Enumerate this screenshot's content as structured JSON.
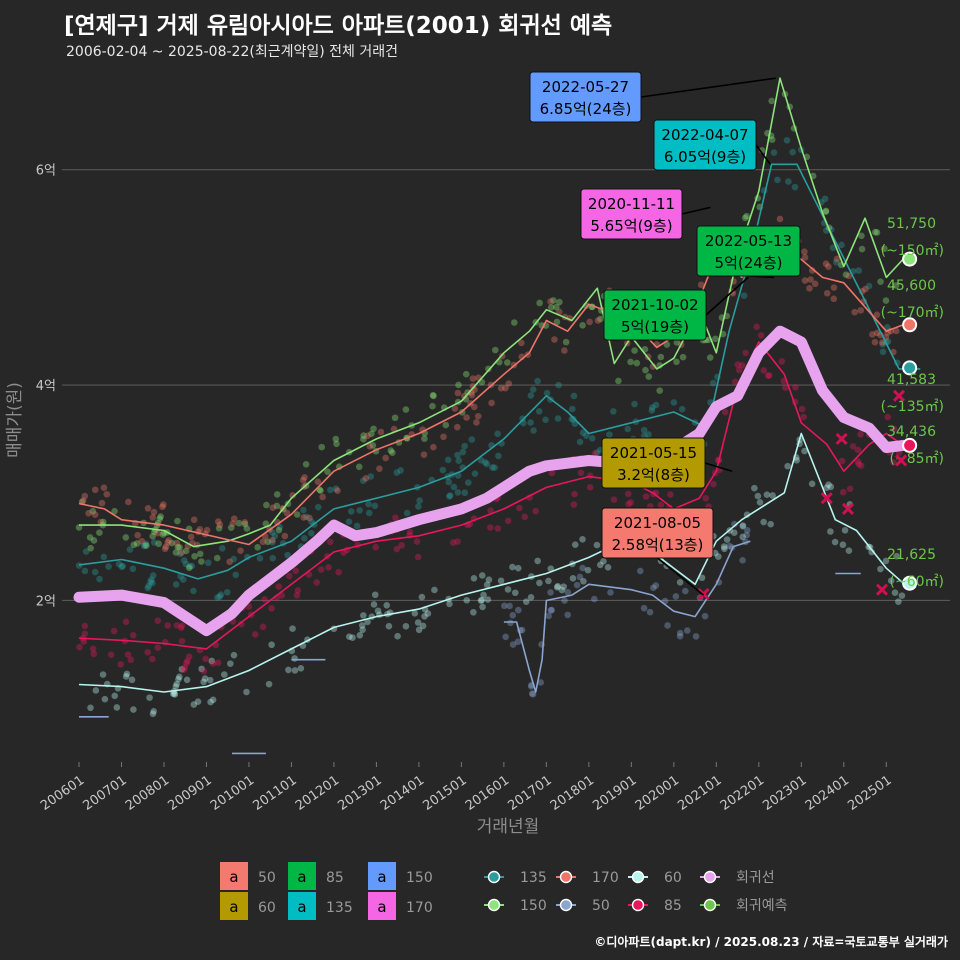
{
  "header": {
    "title": "[연제구] 거제 유림아시아드 아파트(2001) 회귀선 예측",
    "subtitle": "2006-02-04 ~ 2025-08-22(최근계약일) 전체 거래건"
  },
  "footer": {
    "credit": "©디아파트(dapt.kr) / 2025.08.23 / 자료=국토교통부 실거래가"
  },
  "colors": {
    "background": "#272727",
    "s50": "#f4796f",
    "s60": "#b39a00",
    "s85": "#00b745",
    "s135": "#00bdc4",
    "s150": "#629afe",
    "s170": "#f466e3",
    "line135": "#2a9d9f",
    "line150": "#8ce47a",
    "line170": "#ef7568",
    "line50": "#8aa5cf",
    "line60": "#b7f4ee",
    "line85": "#e8175d",
    "regression": "#e8a3ee",
    "forecast": "#6dc64a"
  },
  "chart_data": {
    "type": "scatter",
    "xlabel": "거래년월",
    "ylabel": "매매가(원)",
    "ylim": [
      0.5,
      7.0
    ],
    "y_unit": "억",
    "y_ticks": [
      {
        "v": 2,
        "label": "2억"
      },
      {
        "v": 4,
        "label": "4억"
      },
      {
        "v": 6,
        "label": "6억"
      }
    ],
    "x_ticks": [
      "200601",
      "200701",
      "200801",
      "200901",
      "201001",
      "201101",
      "201201",
      "201301",
      "201401",
      "201501",
      "201601",
      "201701",
      "201801",
      "201901",
      "202001",
      "202101",
      "202201",
      "202301",
      "202401",
      "202501"
    ],
    "xlim": [
      2005.6,
      2026.5
    ],
    "series": [
      {
        "name": "135",
        "points": [
          [
            2006.0,
            2.33
          ],
          [
            2007.0,
            2.38
          ],
          [
            2008.0,
            2.3
          ],
          [
            2008.8,
            2.2
          ],
          [
            2009.5,
            2.28
          ],
          [
            2010.0,
            2.4
          ],
          [
            2011.0,
            2.55
          ],
          [
            2012.0,
            2.85
          ],
          [
            2013.0,
            2.95
          ],
          [
            2014.0,
            3.05
          ],
          [
            2015.0,
            3.2
          ],
          [
            2016.0,
            3.5
          ],
          [
            2017.0,
            3.9
          ],
          [
            2017.5,
            3.75
          ],
          [
            2018.0,
            3.55
          ],
          [
            2019.0,
            3.65
          ],
          [
            2020.0,
            3.75
          ],
          [
            2020.8,
            3.6
          ],
          [
            2021.3,
            4.5
          ],
          [
            2021.8,
            5.2
          ],
          [
            2022.3,
            6.05
          ],
          [
            2022.9,
            6.05
          ],
          [
            2025.3,
            4.15
          ],
          [
            2025.8,
            4.15
          ]
        ]
      },
      {
        "name": "150",
        "points": [
          [
            2006.0,
            2.7
          ],
          [
            2007.0,
            2.7
          ],
          [
            2008.0,
            2.65
          ],
          [
            2008.7,
            2.5
          ],
          [
            2009.5,
            2.55
          ],
          [
            2010.0,
            2.62
          ],
          [
            2010.5,
            2.7
          ],
          [
            2011.0,
            2.95
          ],
          [
            2012.0,
            3.3
          ],
          [
            2013.0,
            3.5
          ],
          [
            2014.0,
            3.65
          ],
          [
            2015.0,
            3.85
          ],
          [
            2016.0,
            4.3
          ],
          [
            2016.6,
            4.5
          ],
          [
            2017.0,
            4.7
          ],
          [
            2017.6,
            4.6
          ],
          [
            2018.2,
            4.9
          ],
          [
            2018.6,
            4.2
          ],
          [
            2019.0,
            4.45
          ],
          [
            2019.6,
            4.15
          ],
          [
            2020.0,
            4.25
          ],
          [
            2020.6,
            4.7
          ],
          [
            2021.0,
            4.3
          ],
          [
            2021.5,
            5.2
          ],
          [
            2022.0,
            5.8
          ],
          [
            2022.5,
            6.85
          ],
          [
            2023.0,
            6.2
          ],
          [
            2023.5,
            5.6
          ],
          [
            2024.0,
            5.1
          ],
          [
            2024.5,
            5.55
          ],
          [
            2025.0,
            5.0
          ],
          [
            2025.4,
            5.17
          ]
        ]
      },
      {
        "name": "170",
        "points": [
          [
            2006.0,
            2.9
          ],
          [
            2006.6,
            2.85
          ],
          [
            2007.0,
            2.75
          ],
          [
            2008.0,
            2.7
          ],
          [
            2010.0,
            2.52
          ],
          [
            2011.0,
            2.8
          ],
          [
            2012.0,
            3.2
          ],
          [
            2013.0,
            3.4
          ],
          [
            2014.0,
            3.55
          ],
          [
            2015.0,
            3.75
          ],
          [
            2016.0,
            4.1
          ],
          [
            2016.6,
            4.3
          ],
          [
            2017.0,
            4.6
          ],
          [
            2017.5,
            4.5
          ],
          [
            2018.0,
            4.75
          ],
          [
            2019.0,
            4.6
          ],
          [
            2019.6,
            4.35
          ],
          [
            2020.0,
            4.45
          ],
          [
            2020.6,
            4.8
          ],
          [
            2021.0,
            5.2
          ],
          [
            2021.6,
            5.0
          ],
          [
            2022.3,
            5.45
          ],
          [
            2022.9,
            5.2
          ],
          [
            2023.5,
            5.0
          ],
          [
            2024.0,
            4.95
          ],
          [
            2025.0,
            4.5
          ],
          [
            2025.4,
            4.56
          ]
        ]
      },
      {
        "name": "50",
        "points": [
          [
            2006.0,
            0.92
          ],
          [
            2006.7,
            0.92
          ]
        ]
      },
      {
        "name": "50",
        "points": [
          [
            2009.6,
            0.58
          ],
          [
            2010.4,
            0.58
          ]
        ]
      },
      {
        "name": "50",
        "points": [
          [
            2011.0,
            1.45
          ],
          [
            2011.8,
            1.45
          ]
        ]
      },
      {
        "name": "50",
        "points": [
          [
            2016.0,
            1.8
          ],
          [
            2016.3,
            1.8
          ],
          [
            2016.6,
            1.35
          ],
          [
            2016.75,
            1.15
          ],
          [
            2016.9,
            1.45
          ],
          [
            2017.0,
            2.0
          ],
          [
            2017.6,
            2.05
          ],
          [
            2018.0,
            2.15
          ],
          [
            2019.0,
            2.1
          ],
          [
            2019.5,
            2.05
          ],
          [
            2020.0,
            1.9
          ],
          [
            2020.5,
            1.85
          ],
          [
            2021.0,
            2.15
          ],
          [
            2021.4,
            2.5
          ],
          [
            2021.8,
            2.55
          ]
        ]
      },
      {
        "name": "50",
        "points": [
          [
            2023.8,
            2.25
          ],
          [
            2024.4,
            2.25
          ]
        ]
      },
      {
        "name": "60",
        "points": [
          [
            2006.0,
            1.22
          ],
          [
            2007.0,
            1.2
          ],
          [
            2008.0,
            1.15
          ],
          [
            2009.0,
            1.2
          ],
          [
            2010.0,
            1.35
          ],
          [
            2011.0,
            1.55
          ],
          [
            2012.0,
            1.75
          ],
          [
            2013.0,
            1.85
          ],
          [
            2014.0,
            1.92
          ],
          [
            2015.0,
            2.05
          ],
          [
            2016.0,
            2.15
          ],
          [
            2017.0,
            2.25
          ],
          [
            2018.0,
            2.4
          ],
          [
            2018.8,
            2.55
          ],
          [
            2019.5,
            2.45
          ],
          [
            2020.0,
            2.3
          ],
          [
            2020.5,
            2.15
          ],
          [
            2021.0,
            2.55
          ],
          [
            2021.6,
            2.75
          ],
          [
            2022.0,
            2.85
          ],
          [
            2022.6,
            3.0
          ],
          [
            2023.0,
            3.55
          ],
          [
            2023.8,
            2.75
          ],
          [
            2024.3,
            2.65
          ],
          [
            2025.0,
            2.3
          ],
          [
            2025.4,
            2.16
          ]
        ]
      },
      {
        "name": "85",
        "points": [
          [
            2006.0,
            1.65
          ],
          [
            2007.0,
            1.63
          ],
          [
            2008.0,
            1.6
          ],
          [
            2009.0,
            1.55
          ],
          [
            2010.0,
            1.85
          ],
          [
            2011.0,
            2.15
          ],
          [
            2012.0,
            2.45
          ],
          [
            2013.0,
            2.55
          ],
          [
            2014.0,
            2.6
          ],
          [
            2015.0,
            2.7
          ],
          [
            2016.0,
            2.85
          ],
          [
            2017.0,
            3.05
          ],
          [
            2018.0,
            3.15
          ],
          [
            2019.0,
            3.1
          ],
          [
            2019.5,
            3.0
          ],
          [
            2020.0,
            2.85
          ],
          [
            2020.6,
            2.95
          ],
          [
            2021.0,
            3.2
          ],
          [
            2021.5,
            4.0
          ],
          [
            2022.0,
            4.4
          ],
          [
            2022.6,
            4.1
          ],
          [
            2023.0,
            3.65
          ],
          [
            2023.6,
            3.45
          ],
          [
            2024.0,
            3.2
          ],
          [
            2024.6,
            3.45
          ],
          [
            2025.0,
            3.55
          ],
          [
            2025.4,
            3.44
          ]
        ]
      }
    ],
    "regression": [
      [
        2006.0,
        2.03
      ],
      [
        2007.0,
        2.05
      ],
      [
        2008.0,
        1.98
      ],
      [
        2008.5,
        1.85
      ],
      [
        2009.0,
        1.72
      ],
      [
        2009.6,
        1.88
      ],
      [
        2010.0,
        2.05
      ],
      [
        2011.0,
        2.35
      ],
      [
        2011.6,
        2.55
      ],
      [
        2012.0,
        2.7
      ],
      [
        2012.5,
        2.6
      ],
      [
        2013.0,
        2.63
      ],
      [
        2014.0,
        2.75
      ],
      [
        2015.0,
        2.85
      ],
      [
        2015.6,
        2.95
      ],
      [
        2016.0,
        3.05
      ],
      [
        2016.6,
        3.2
      ],
      [
        2017.0,
        3.25
      ],
      [
        2018.0,
        3.3
      ],
      [
        2018.6,
        3.28
      ],
      [
        2019.0,
        3.35
      ],
      [
        2019.6,
        3.3
      ],
      [
        2020.0,
        3.4
      ],
      [
        2020.6,
        3.55
      ],
      [
        2021.0,
        3.8
      ],
      [
        2021.5,
        3.9
      ],
      [
        2022.0,
        4.3
      ],
      [
        2022.5,
        4.5
      ],
      [
        2023.0,
        4.4
      ],
      [
        2023.5,
        3.95
      ],
      [
        2024.0,
        3.7
      ],
      [
        2024.6,
        3.6
      ],
      [
        2025.0,
        3.42
      ],
      [
        2025.4,
        3.44
      ]
    ],
    "forecasts": [
      {
        "value": 5.17,
        "label1": "51,750",
        "label2": "(~150㎡)"
      },
      {
        "value": 4.56,
        "label1": "45,600",
        "label2": "(~170㎡)"
      },
      {
        "value": 4.16,
        "label1": "41,583",
        "label2": "(~135㎡)"
      },
      {
        "value": 3.44,
        "label1": "34,436",
        "label2": "(~85㎡)"
      },
      {
        "value": 2.16,
        "label1": "21,625",
        "label2": "(~60㎡)"
      }
    ],
    "annotations": [
      {
        "date": "2022-05-27",
        "price": "6.85억(24층)",
        "series": "150",
        "x": 2022.4,
        "y": 6.85
      },
      {
        "date": "2022-04-07",
        "price": "6.05억(9층)",
        "series": "135",
        "x": 2022.27,
        "y": 6.05
      },
      {
        "date": "2020-11-11",
        "price": "5.65억(9층)",
        "series": "170",
        "x": 2020.86,
        "y": 5.65
      },
      {
        "date": "2022-05-13",
        "price": "5억(24층)",
        "series": "85",
        "x": 2022.36,
        "y": 5.0
      },
      {
        "date": "2021-10-02",
        "price": "5억(19층)",
        "series": "85",
        "x": 2021.75,
        "y": 5.0
      },
      {
        "date": "2021-05-15",
        "price": "3.2억(8층)",
        "series": "60",
        "x": 2021.37,
        "y": 3.2
      },
      {
        "date": "2021-08-05",
        "price": "2.58억(13층)",
        "series": "50",
        "x": 2020.7,
        "y": 2.05
      }
    ],
    "legend_box": [
      {
        "key": "a",
        "label": "50",
        "color": "#f4796f"
      },
      {
        "key": "a",
        "label": "60",
        "color": "#b39a00"
      },
      {
        "key": "a",
        "label": "85",
        "color": "#00b745"
      },
      {
        "key": "a",
        "label": "135",
        "color": "#00bdc4"
      },
      {
        "key": "a",
        "label": "150",
        "color": "#629afe"
      },
      {
        "key": "a",
        "label": "170",
        "color": "#f466e3"
      }
    ],
    "legend_line": [
      {
        "label": "135",
        "color": "#2a9d9f"
      },
      {
        "label": "150",
        "color": "#8ce47a"
      },
      {
        "label": "170",
        "color": "#ef7568"
      },
      {
        "label": "50",
        "color": "#8aa5cf"
      },
      {
        "label": "60",
        "color": "#b7f4ee"
      },
      {
        "label": "85",
        "color": "#e8175d"
      },
      {
        "label": "회귀선",
        "color": "#e8a3ee"
      },
      {
        "label": "회귀예측",
        "color": "#6dc64a"
      }
    ],
    "legend_position": "bottom"
  }
}
